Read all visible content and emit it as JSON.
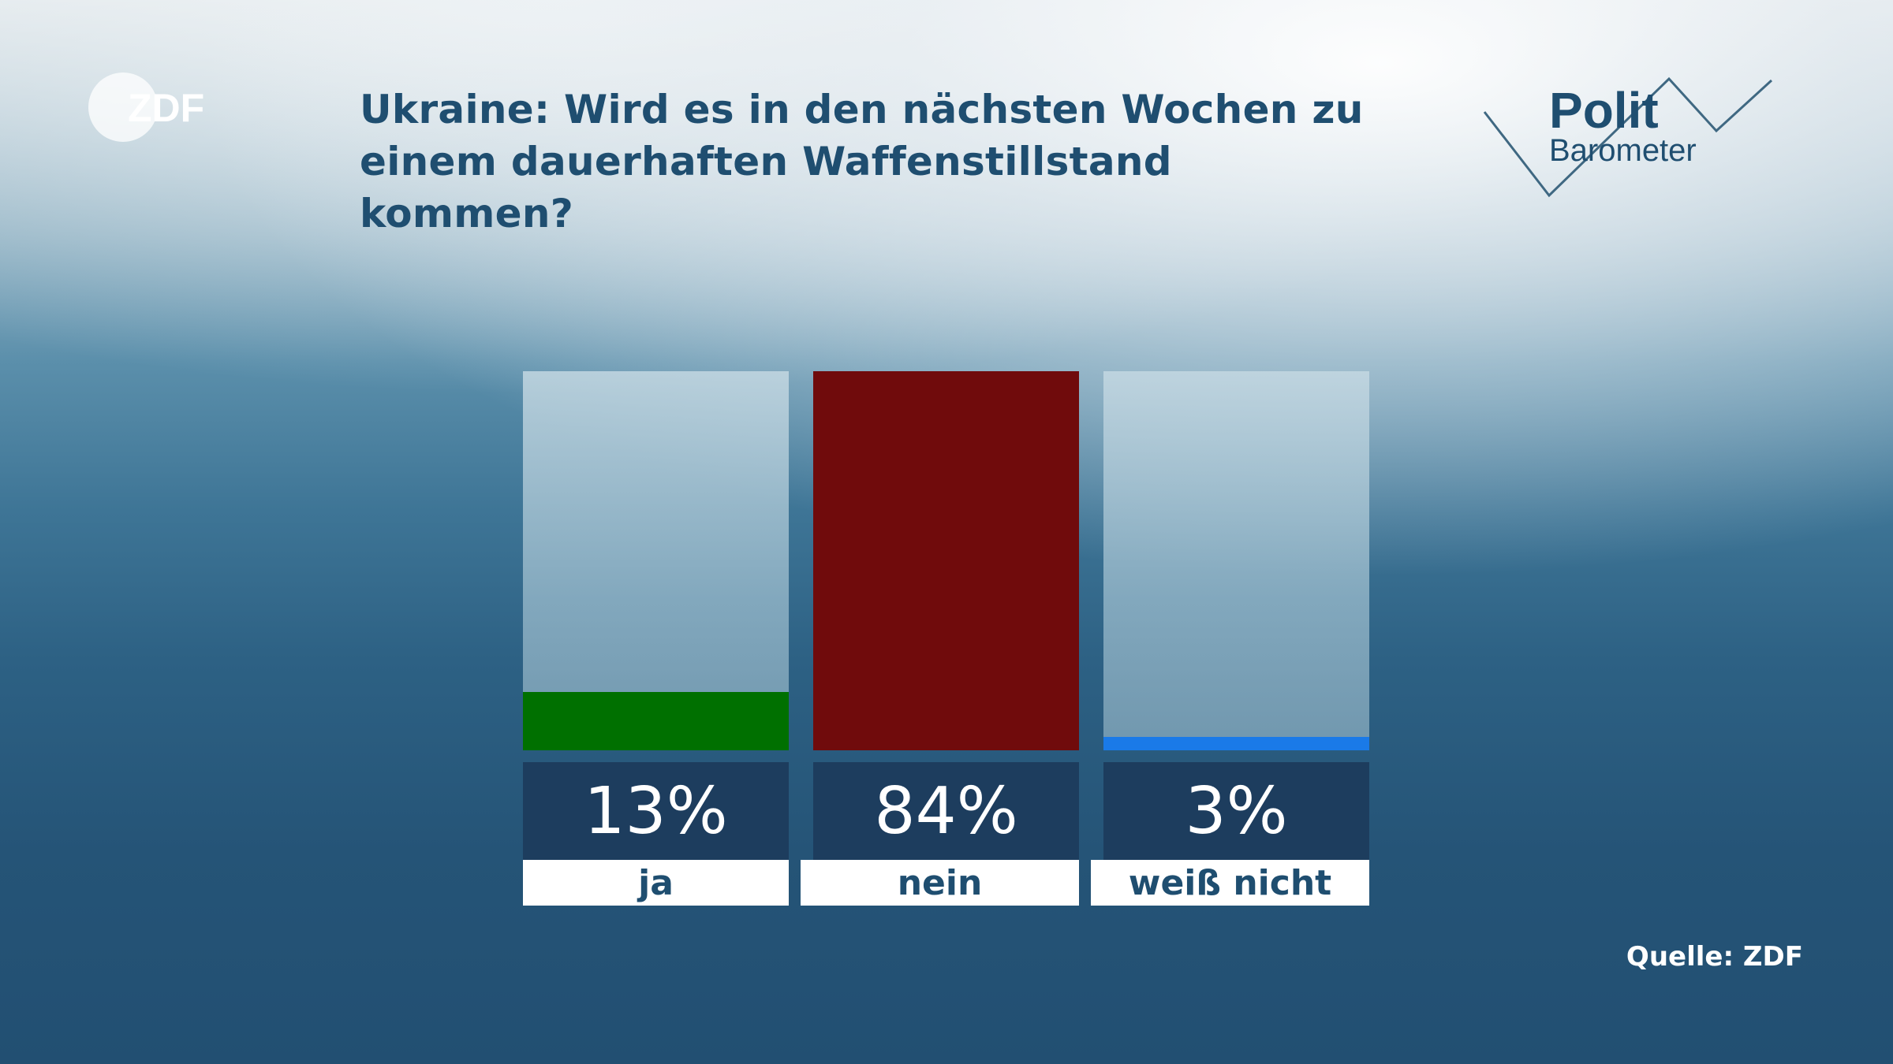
{
  "header": {
    "logo_text": "ZDF",
    "title_line1": "Ukraine: Wird es in den nächsten Wochen zu",
    "title_line2": "einem dauerhaften Waffenstillstand kommen?",
    "brand_line1": "Polit",
    "brand_line2": "Barometer"
  },
  "footer": {
    "source": "Quelle: ZDF"
  },
  "chart_data": {
    "type": "bar",
    "title": "Ukraine: Wird es in den nächsten Wochen zu einem dauerhaften Waffenstillstand kommen?",
    "categories": [
      "ja",
      "nein",
      "weiß nicht"
    ],
    "values": [
      13,
      84,
      3
    ],
    "value_labels": [
      "13%",
      "84%",
      "3%"
    ],
    "colors": [
      "#007000",
      "#700b0c",
      "#1a7ae8"
    ],
    "ylim": [
      0,
      84
    ],
    "grid": false,
    "legend": "none"
  }
}
